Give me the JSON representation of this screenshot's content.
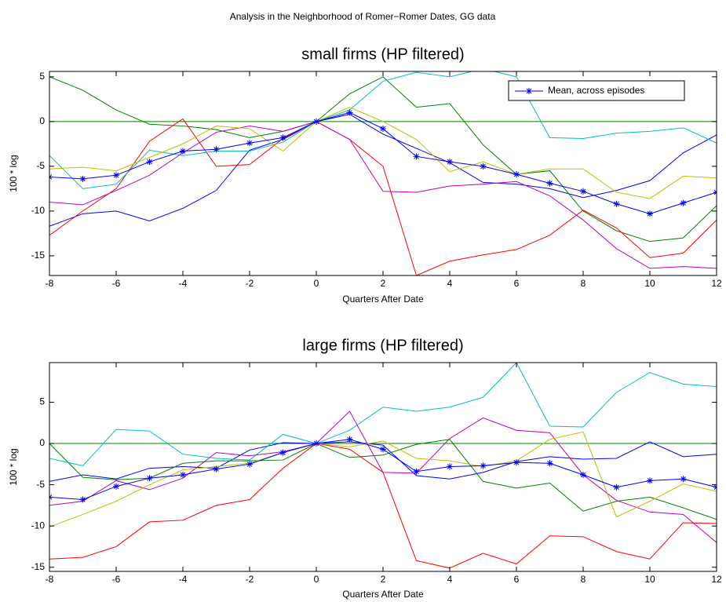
{
  "title": "Analysis in the Neighborhood of Romer−Romer Dates, GG data",
  "chart_data": [
    {
      "type": "line",
      "title": "small firms (HP filtered)",
      "x_label": "Quarters After Date",
      "y_label": "100 * log",
      "x": [
        -8,
        -7,
        -6,
        -5,
        -4,
        -3,
        -2,
        -1,
        0,
        1,
        2,
        3,
        4,
        5,
        6,
        7,
        8,
        9,
        10,
        11,
        12
      ],
      "xlim": [
        -8,
        12
      ],
      "xticks": [
        -8,
        -6,
        -4,
        -2,
        0,
        2,
        4,
        6,
        8,
        10,
        12
      ],
      "ylim": [
        -17.2,
        5.6
      ],
      "yticks": [
        -15,
        -10,
        -5,
        0,
        5
      ],
      "reference_line": {
        "value": 0,
        "color": "#008000"
      },
      "legend": "upper right",
      "series": [
        {
          "color": "#0000ff",
          "values": [
            -11.7,
            -10.3,
            -10,
            -11.1,
            -9.7,
            -7.7,
            -3.2,
            -2,
            0,
            0.8,
            -1.4,
            -3,
            -4.6,
            -6.8,
            -7,
            -7.5,
            -8.5,
            -7.7,
            -6.6,
            -3.5,
            -1.5
          ]
        },
        {
          "color": "#008000",
          "values": [
            5,
            3.5,
            1.3,
            -0.3,
            -0.5,
            -0.9,
            -1.8,
            -1.1,
            0,
            3.1,
            5,
            1.6,
            2,
            -2.6,
            -5.9,
            -5.5,
            -10,
            -12.2,
            -13.4,
            -13,
            -9.4
          ]
        },
        {
          "color": "#ff0000",
          "values": [
            -12.7,
            -10,
            -7.5,
            -2.2,
            0.3,
            -5,
            -4.8,
            -1.9,
            0,
            -2,
            -5,
            -17.2,
            -15.6,
            -14.9,
            -14.3,
            -12.7,
            -9.9,
            -11.9,
            -15.2,
            -14.7,
            -11
          ]
        },
        {
          "color": "#00bfbf",
          "values": [
            -3.8,
            -7.5,
            -7,
            -3.2,
            -3.8,
            -3.3,
            -3.3,
            -2.3,
            0,
            1.3,
            4.5,
            5.5,
            5,
            5.9,
            5,
            -1.8,
            -1.9,
            -1.3,
            -1.1,
            -0.7,
            -2.4
          ]
        },
        {
          "color": "#bf00bf",
          "values": [
            -9,
            -9.3,
            -7.7,
            -6,
            -3.5,
            -1.2,
            -0.5,
            -1.1,
            0,
            -2,
            -7.8,
            -7.9,
            -7.2,
            -7,
            -6.7,
            -8.3,
            -11,
            -14.2,
            -16.4,
            -16.2,
            -16.4
          ]
        },
        {
          "color": "#bfbf00",
          "values": [
            -5.3,
            -5.1,
            -5.5,
            -4,
            -2.5,
            -0.5,
            -0.8,
            -3.3,
            0,
            1.6,
            0,
            -2,
            -5.6,
            -4.5,
            -5.9,
            -5.3,
            -5.3,
            -7.9,
            -8.6,
            -6.1,
            -6.3
          ]
        },
        {
          "name": "Mean, across episodes",
          "color": "#0000ff",
          "marker": "*",
          "values": [
            -6.2,
            -6.4,
            -6,
            -4.5,
            -3.3,
            -3.1,
            -2.4,
            -1.8,
            0,
            1,
            -0.8,
            -3.9,
            -4.5,
            -5,
            -5.9,
            -6.9,
            -7.8,
            -9.2,
            -10.3,
            -9.1,
            -7.9
          ]
        }
      ]
    },
    {
      "type": "line",
      "title": "large firms (HP filtered)",
      "x_label": "Quarters After Date",
      "y_label": "100 * log",
      "x": [
        -8,
        -7,
        -6,
        -5,
        -4,
        -3,
        -2,
        -1,
        0,
        1,
        2,
        3,
        4,
        5,
        6,
        7,
        8,
        9,
        10,
        11,
        12
      ],
      "xlim": [
        -8,
        12
      ],
      "xticks": [
        -8,
        -6,
        -4,
        -2,
        0,
        2,
        4,
        6,
        8,
        10,
        12
      ],
      "ylim": [
        -15.5,
        9.8
      ],
      "yticks": [
        -15,
        -10,
        -5,
        0,
        5
      ],
      "reference_line": {
        "value": 0,
        "color": "#008000"
      },
      "series": [
        {
          "color": "#0000ff",
          "values": [
            -4.6,
            -3.8,
            -4.3,
            -3,
            -2.8,
            -3,
            -0.8,
            0.1,
            0,
            0.2,
            -0.2,
            -3.9,
            -4.3,
            -3.5,
            -2.2,
            -1.6,
            -1.9,
            -1.8,
            0.2,
            -1.6,
            -1.3
          ]
        },
        {
          "color": "#008000",
          "values": [
            0,
            -4.1,
            -4.4,
            -4.2,
            -2.4,
            -2.1,
            -2.1,
            -2,
            0,
            -1.7,
            -1.4,
            -0.1,
            0.5,
            -4.6,
            -5.4,
            -4.8,
            -8.2,
            -7,
            -6.5,
            -7.8,
            -9.2
          ]
        },
        {
          "color": "#ff0000",
          "values": [
            -14,
            -13.8,
            -12.5,
            -9.5,
            -9.3,
            -7.5,
            -6.8,
            -3,
            0,
            -0.7,
            -3.5,
            -14.2,
            -15.1,
            -13.3,
            -14.6,
            -11.2,
            -11.3,
            -13.1,
            -14,
            -9.6,
            -9.7
          ]
        },
        {
          "color": "#00bfbf",
          "values": [
            -1.8,
            -2.7,
            1.7,
            1.5,
            -1.3,
            -1.8,
            -2,
            1.1,
            0,
            1.6,
            4.4,
            3.9,
            4.4,
            5.6,
            9.8,
            2.1,
            2,
            6.2,
            8.6,
            7.2,
            6.9
          ]
        },
        {
          "color": "#bf00bf",
          "values": [
            -7.5,
            -7,
            -4.5,
            -5.6,
            -4.2,
            -1.1,
            -1.5,
            -1,
            0,
            3.9,
            -3.5,
            -3.6,
            0.6,
            3.1,
            1.6,
            1.3,
            -3.8,
            -6.9,
            -8.3,
            -8.6,
            -12
          ]
        },
        {
          "color": "#bfbf00",
          "values": [
            -10.1,
            -8.6,
            -7,
            -5,
            -3.2,
            -2.8,
            -2.4,
            -1.1,
            0,
            -0.4,
            0.3,
            -1.8,
            -2.1,
            -2.8,
            -2.1,
            0.5,
            1.4,
            -8.9,
            -7,
            -4.9,
            -5.8
          ]
        },
        {
          "name": "Mean, across episodes",
          "color": "#0000ff",
          "marker": "*",
          "values": [
            -6.5,
            -6.8,
            -5.2,
            -4.2,
            -3.8,
            -3.1,
            -2.5,
            -1.1,
            0,
            0.5,
            -0.7,
            -3.4,
            -2.8,
            -2.7,
            -2.3,
            -2.4,
            -3.8,
            -5.3,
            -4.5,
            -4.3,
            -5.3
          ]
        }
      ]
    }
  ]
}
